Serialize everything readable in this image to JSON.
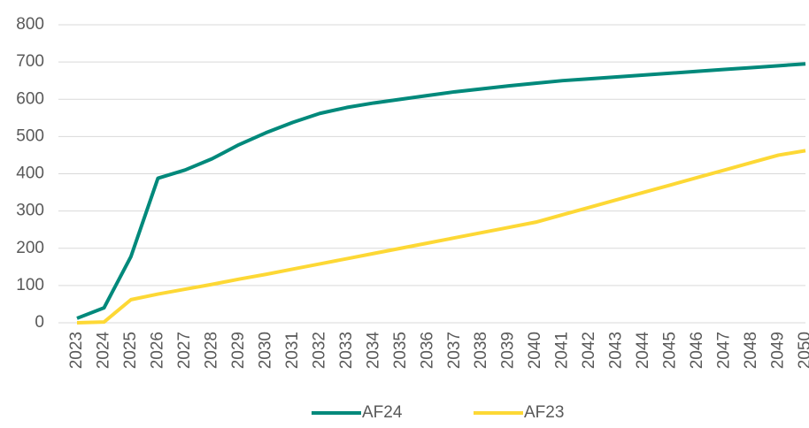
{
  "chart_data": {
    "type": "line",
    "x": [
      2023,
      2024,
      2025,
      2026,
      2027,
      2028,
      2029,
      2030,
      2031,
      2032,
      2033,
      2034,
      2035,
      2036,
      2037,
      2038,
      2039,
      2040,
      2041,
      2042,
      2043,
      2044,
      2045,
      2046,
      2047,
      2048,
      2049,
      2050
    ],
    "series": [
      {
        "name": "AF24",
        "color": "#00897b",
        "values": [
          12,
          40,
          178,
          388,
          410,
          440,
          478,
          510,
          538,
          562,
          578,
          590,
          600,
          610,
          620,
          628,
          636,
          643,
          650,
          655,
          660,
          665,
          670,
          675,
          680,
          685,
          690,
          695
        ]
      },
      {
        "name": "AF23",
        "color": "#fdd835",
        "values": [
          0,
          2,
          62,
          77,
          90,
          103,
          117,
          130,
          144,
          158,
          172,
          186,
          200,
          214,
          228,
          242,
          256,
          270,
          290,
          310,
          330,
          350,
          370,
          390,
          410,
          430,
          450,
          462
        ]
      }
    ],
    "xlim": [
      2023,
      2050
    ],
    "ylim": [
      0,
      800
    ],
    "yticks": [
      0,
      100,
      200,
      300,
      400,
      500,
      600,
      700,
      800
    ],
    "grid": true,
    "legend": "bottom"
  }
}
